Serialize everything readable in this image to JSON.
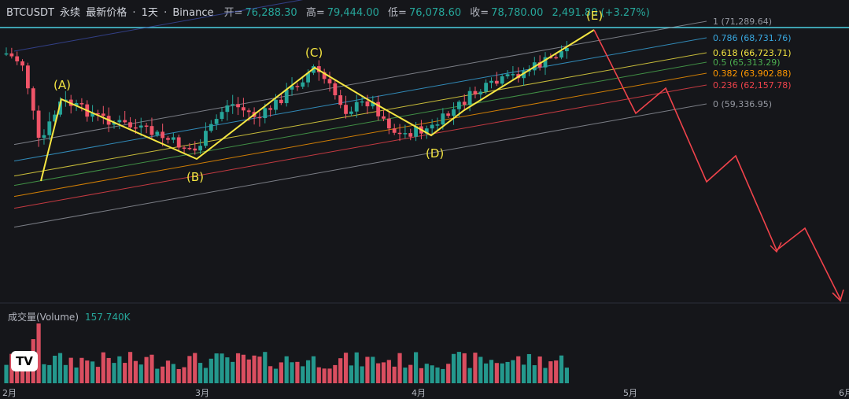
{
  "header": {
    "symbol": "BTCUSDT",
    "contract": "永续",
    "price_type": "最新价格",
    "interval": "1天",
    "exchange": "Binance",
    "open_label": "开=",
    "open": "76,288.30",
    "high_label": "高=",
    "high": "79,444.00",
    "low_label": "低=",
    "low": "76,078.60",
    "close_label": "收=",
    "close": "78,780.00",
    "change": "2,491.80 (+3.27%)"
  },
  "volume": {
    "label": "成交量(Volume)",
    "value": "157.740K"
  },
  "colors": {
    "up": "#26a69a",
    "down": "#f05468",
    "wave": "#f5e642",
    "projection": "#f0434b"
  },
  "chart_data": {
    "type": "candlestick",
    "x_ticks": [
      "2月",
      "3月",
      "4月",
      "5月",
      "6月"
    ],
    "fib_levels": [
      {
        "ratio": "1",
        "value": "71,289.64",
        "color": "#9598a1"
      },
      {
        "ratio": "0.786",
        "value": "68,731.76",
        "color": "#38a8e0"
      },
      {
        "ratio": "0.618",
        "value": "66,723.71",
        "color": "#f5e642"
      },
      {
        "ratio": "0.5",
        "value": "65,313.29",
        "color": "#4caf50"
      },
      {
        "ratio": "0.382",
        "value": "63,902.88",
        "color": "#ff9800"
      },
      {
        "ratio": "0.236",
        "value": "62,157.78",
        "color": "#f0434b"
      },
      {
        "ratio": "0",
        "value": "59,336.95",
        "color": "#9598a1"
      }
    ],
    "wave_labels": [
      "(A)",
      "(B)",
      "(C)",
      "(D)",
      "(E)"
    ]
  }
}
